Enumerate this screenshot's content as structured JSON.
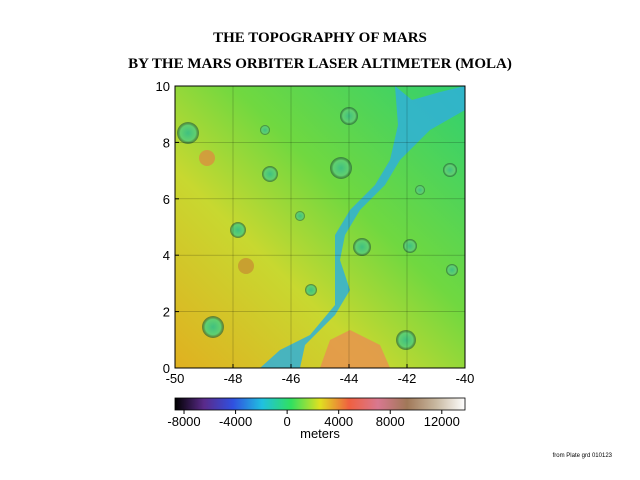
{
  "chart_data": {
    "type": "map",
    "title": "THE TOPOGRAPHY OF MARS",
    "subtitle": "BY THE MARS ORBITER LASER ALTIMETER (MOLA)",
    "xlim": [
      -50,
      -40
    ],
    "xticks": [
      -50,
      -48,
      -46,
      -44,
      -42,
      -40
    ],
    "ylim": [
      0,
      10
    ],
    "yticks": [
      0,
      2,
      4,
      6,
      8,
      10
    ],
    "grid": true,
    "colorbar": {
      "label": "meters",
      "lim": [
        -8700,
        13800
      ],
      "ticks": [
        -8000,
        -4000,
        0,
        4000,
        8000,
        12000
      ],
      "colors": [
        "#000000",
        "#5a2a8a",
        "#3050e0",
        "#20c0e0",
        "#30e060",
        "#e0e020",
        "#f06040",
        "#d87890",
        "#a07858",
        "#c8b8a0",
        "#ffffff"
      ]
    }
  },
  "credit": "from Plate grd 010123"
}
